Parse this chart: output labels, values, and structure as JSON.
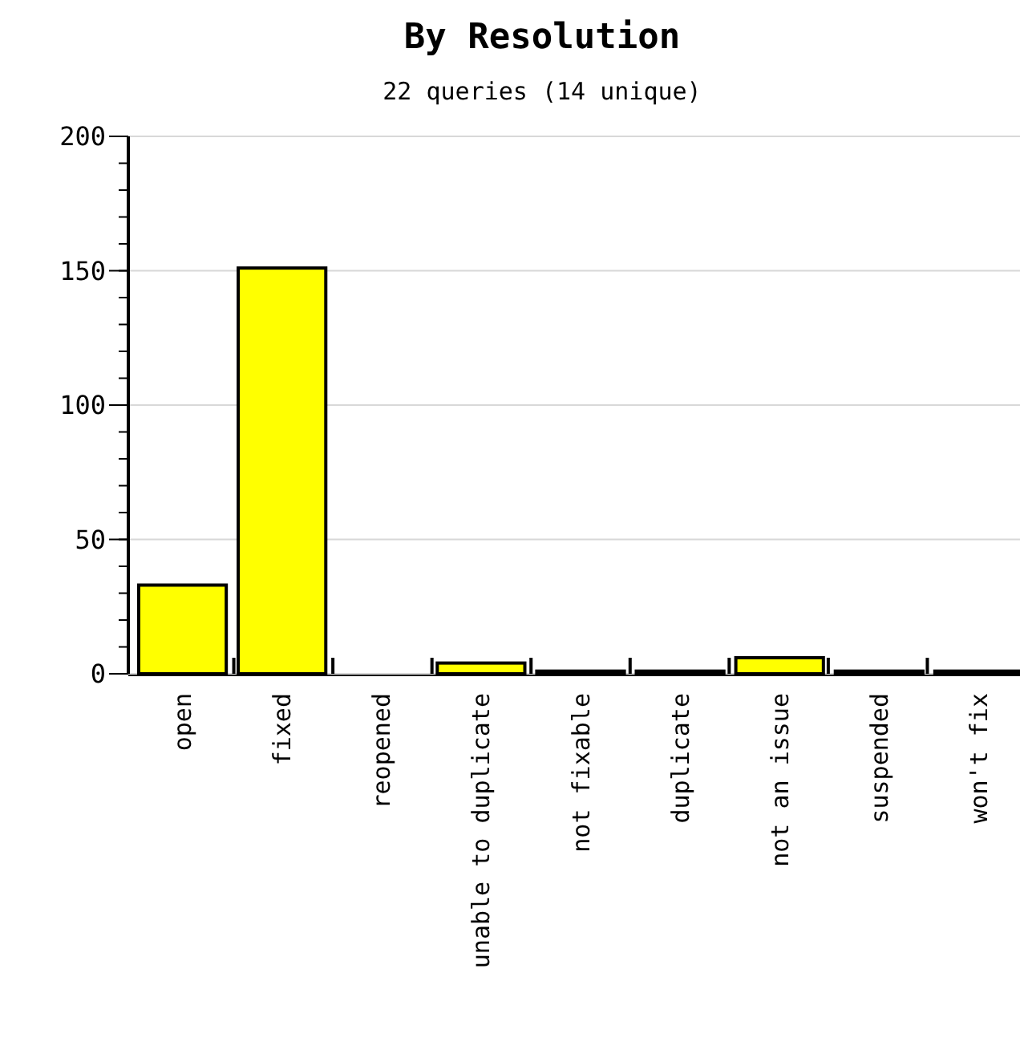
{
  "chart_data": {
    "type": "bar",
    "title": "By Resolution",
    "subtitle": "22 queries (14 unique)",
    "categories": [
      "open",
      "fixed",
      "reopened",
      "unable to duplicate",
      "not fixable",
      "duplicate",
      "not an issue",
      "suspended",
      "won't fix"
    ],
    "values": [
      33,
      151,
      0,
      4,
      1,
      1,
      6,
      1,
      1
    ],
    "color": "#ffff00",
    "ylim": [
      0,
      200
    ],
    "yticks": [
      0,
      50,
      100,
      150,
      200
    ],
    "grid": "y"
  }
}
